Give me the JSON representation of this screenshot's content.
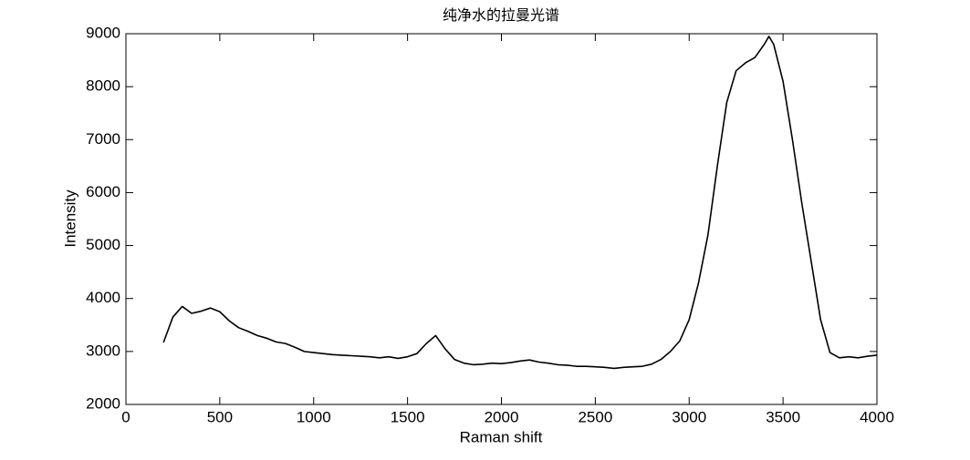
{
  "chart_data": {
    "type": "line",
    "title": "纯净水的拉曼光谱",
    "x_label": "Raman shift",
    "y_label": "Intensity",
    "x": [
      200,
      250,
      300,
      350,
      400,
      450,
      500,
      550,
      600,
      650,
      700,
      750,
      800,
      850,
      900,
      950,
      1000,
      1050,
      1100,
      1150,
      1200,
      1250,
      1300,
      1350,
      1400,
      1450,
      1500,
      1550,
      1600,
      1650,
      1700,
      1750,
      1800,
      1850,
      1900,
      1950,
      2000,
      2050,
      2100,
      2150,
      2200,
      2250,
      2300,
      2350,
      2400,
      2450,
      2500,
      2550,
      2600,
      2650,
      2700,
      2750,
      2800,
      2850,
      2900,
      2950,
      3000,
      3050,
      3100,
      3150,
      3200,
      3250,
      3300,
      3350,
      3400,
      3425,
      3450,
      3500,
      3550,
      3600,
      3650,
      3700,
      3750,
      3800,
      3850,
      3900,
      3950,
      4000
    ],
    "series": [
      {
        "name": "Intensity",
        "color": "#000000",
        "values": [
          3170,
          3650,
          3850,
          3720,
          3760,
          3820,
          3750,
          3580,
          3450,
          3380,
          3300,
          3250,
          3180,
          3150,
          3080,
          3000,
          2980,
          2960,
          2940,
          2930,
          2920,
          2910,
          2900,
          2880,
          2900,
          2870,
          2900,
          2960,
          3150,
          3300,
          3050,
          2850,
          2780,
          2750,
          2760,
          2780,
          2770,
          2790,
          2820,
          2840,
          2800,
          2780,
          2750,
          2740,
          2720,
          2720,
          2710,
          2700,
          2680,
          2700,
          2710,
          2720,
          2760,
          2850,
          3000,
          3200,
          3600,
          4300,
          5200,
          6500,
          7700,
          8300,
          8450,
          8550,
          8800,
          8950,
          8800,
          8100,
          7000,
          5800,
          4700,
          3600,
          2980,
          2880,
          2900,
          2880,
          2910,
          2930
        ]
      }
    ],
    "xlim": [
      0,
      4000
    ],
    "xticks": [
      0,
      500,
      1000,
      1500,
      2000,
      2500,
      3000,
      3500,
      4000
    ],
    "ylim": [
      2000,
      9000
    ],
    "yticks": [
      2000,
      3000,
      4000,
      5000,
      6000,
      7000,
      8000,
      9000
    ],
    "grid": false
  }
}
